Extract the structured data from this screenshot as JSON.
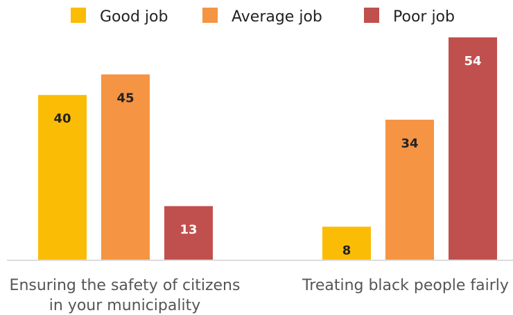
{
  "chart_data": {
    "type": "bar",
    "categories": [
      [
        "Ensuring the safety of citizens",
        "in your municipality"
      ],
      [
        "Treating black people fairly"
      ]
    ],
    "series": [
      {
        "name": "Good job",
        "values": [
          40,
          8
        ],
        "color": "#FBBC05",
        "label_color": "#222222"
      },
      {
        "name": "Average job",
        "values": [
          45,
          34
        ],
        "color": "#F59443",
        "label_color": "#222222"
      },
      {
        "name": "Poor job",
        "values": [
          13,
          54
        ],
        "color": "#C0504D",
        "label_color": "#ffffff"
      }
    ],
    "ylim": [
      0,
      54
    ],
    "grid": false,
    "legend_position": "top",
    "axis_color": "#D0D0D0"
  }
}
